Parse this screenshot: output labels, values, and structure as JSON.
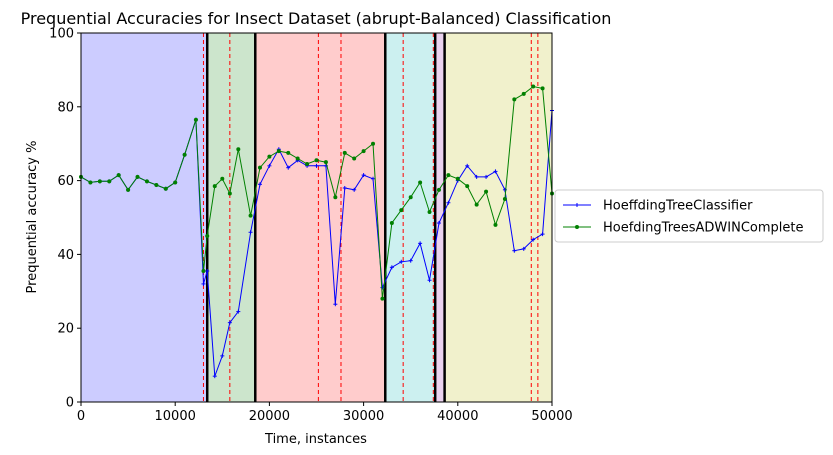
{
  "chart_data": {
    "type": "line",
    "title": "Prequential Accuracies for Insect Dataset (abrupt-Balanced) Classification",
    "xlabel": "Time, instances",
    "ylabel": "Prequential accuracy %",
    "xlim": [
      0,
      50000
    ],
    "ylim": [
      0,
      100
    ],
    "x_ticks": [
      0,
      10000,
      20000,
      30000,
      40000,
      50000
    ],
    "y_ticks": [
      0,
      20,
      40,
      60,
      80,
      100
    ],
    "grid": false,
    "legend_position": "outside-right",
    "background_bands": [
      {
        "x0": 0,
        "x1": 13400,
        "color": "#ccccff"
      },
      {
        "x0": 13400,
        "x1": 18500,
        "color": "#cce5cc"
      },
      {
        "x0": 18500,
        "x1": 32300,
        "color": "#ffcccc"
      },
      {
        "x0": 32300,
        "x1": 37600,
        "color": "#ccf0f0"
      },
      {
        "x0": 37600,
        "x1": 38600,
        "color": "#ead2ee"
      },
      {
        "x0": 38600,
        "x1": 50000,
        "color": "#f1f1cc"
      }
    ],
    "concept_drifts": [
      13400,
      18500,
      32300,
      37600,
      38600
    ],
    "detected_drifts": [
      13000,
      15800,
      25200,
      27600,
      34200,
      37400,
      47800,
      48500
    ],
    "series": [
      {
        "name": "HoeffdingTreeClassifier",
        "color": "#0000ff",
        "marker": "+",
        "x": [
          0,
          1000,
          2000,
          3000,
          4000,
          5000,
          6000,
          7000,
          8000,
          9000,
          10000,
          11000,
          12200,
          13000,
          13400,
          14200,
          15000,
          15800,
          16700,
          18000,
          19000,
          20000,
          21000,
          22000,
          23000,
          24000,
          25000,
          26000,
          27000,
          28000,
          29000,
          30000,
          31000,
          32000,
          33000,
          34000,
          35000,
          36000,
          37000,
          38000,
          39000,
          40000,
          41000,
          42000,
          43000,
          44000,
          45000,
          46000,
          47000,
          48000,
          49000,
          50000
        ],
        "y": [
          61.0,
          59.5,
          59.8,
          59.8,
          61.5,
          57.5,
          61.0,
          59.8,
          58.8,
          57.8,
          59.5,
          67.0,
          76.5,
          32.0,
          35.5,
          7.0,
          12.5,
          21.5,
          24.5,
          46.0,
          59.0,
          64.0,
          68.5,
          63.5,
          65.5,
          64.0,
          64.0,
          64.0,
          26.5,
          58.0,
          57.5,
          61.5,
          60.5,
          31.0,
          36.5,
          38.0,
          38.3,
          43.0,
          33.0,
          48.5,
          54.0,
          60.0,
          64.0,
          61.0,
          61.0,
          62.5,
          57.5,
          41.0,
          41.5,
          44.0,
          45.5,
          79.0
        ]
      },
      {
        "name": "HoefdingTreesADWINComplete",
        "color": "#008000",
        "marker": "*",
        "x": [
          0,
          1000,
          2000,
          3000,
          4000,
          5000,
          6000,
          7000,
          8000,
          9000,
          10000,
          11000,
          12200,
          13000,
          13400,
          14200,
          15000,
          15800,
          16700,
          18000,
          19000,
          20000,
          21000,
          22000,
          23000,
          24000,
          25000,
          26000,
          27000,
          28000,
          29000,
          30000,
          31000,
          32000,
          33000,
          34000,
          35000,
          36000,
          37000,
          38000,
          39000,
          40000,
          41000,
          42000,
          43000,
          44000,
          45000,
          46000,
          47000,
          48000,
          49000,
          50000
        ],
        "y": [
          61.0,
          59.5,
          59.8,
          59.8,
          61.5,
          57.5,
          61.0,
          59.8,
          58.8,
          57.8,
          59.5,
          67.0,
          76.5,
          35.5,
          45.0,
          58.5,
          60.5,
          56.5,
          68.5,
          50.5,
          63.5,
          66.5,
          68.0,
          67.5,
          66.0,
          64.5,
          65.5,
          65.0,
          55.5,
          67.5,
          66.0,
          68.0,
          70.0,
          28.0,
          48.5,
          52.0,
          55.5,
          59.5,
          51.5,
          57.5,
          61.5,
          60.5,
          58.5,
          53.5,
          57.0,
          48.0,
          55.0,
          82.0,
          83.5,
          85.5,
          85.0,
          56.5
        ]
      }
    ]
  }
}
